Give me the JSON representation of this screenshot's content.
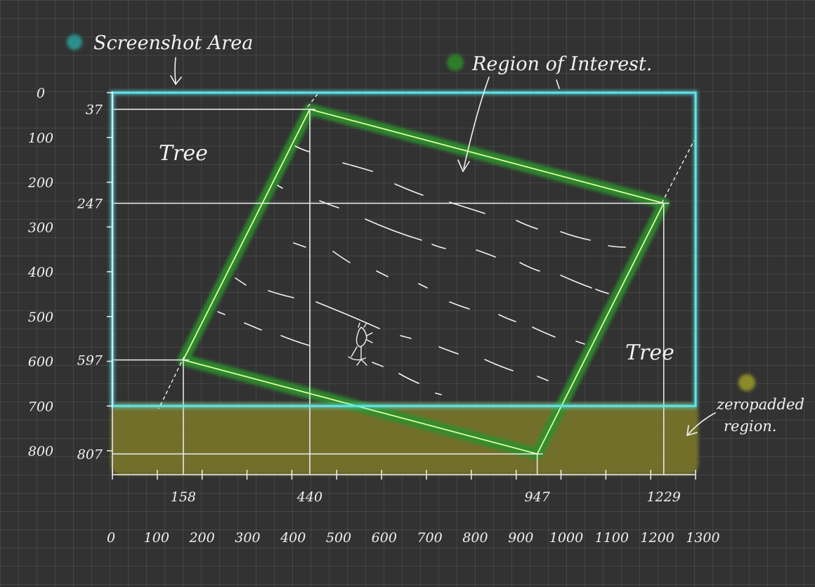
{
  "legend": {
    "screenshot_area": {
      "label": "Screenshot Area",
      "color": "#2b8f8c"
    },
    "region_of_interest": {
      "label": "Region of Interest.",
      "color": "#2e7d2a"
    },
    "zeropadded": {
      "label_line1": "zeropadded",
      "label_line2": "region.",
      "color": "#8a8a2a"
    }
  },
  "labels": {
    "tree_top_left": "Tree",
    "tree_right": "Tree"
  },
  "colors": {
    "screenshot_frame": "#5fe3e6",
    "roi_outline": "#d8ff9a",
    "roi_glow": "#2f8f2f",
    "padding_fill": "#77742a",
    "guide_lines": "#f0f0f0"
  },
  "chart_data": {
    "type": "diagram",
    "units": "pixels",
    "screenshot_area": {
      "x0": 0,
      "y0": 0,
      "x1": 1300,
      "y1": 700
    },
    "zeropadded_region": {
      "x0": 0,
      "y0": 700,
      "x1": 1300,
      "y1": 807
    },
    "region_of_interest": [
      {
        "x": 440,
        "y": 37
      },
      {
        "x": 1229,
        "y": 247
      },
      {
        "x": 947,
        "y": 807
      },
      {
        "x": 158,
        "y": 597
      }
    ],
    "x_ticks": [
      "0",
      "100",
      "200",
      "300",
      "400",
      "500",
      "600",
      "700",
      "800",
      "900",
      "1000",
      "1100",
      "1200",
      "1300"
    ],
    "y_ticks": [
      "0",
      "100",
      "200",
      "300",
      "400",
      "500",
      "600",
      "700",
      "800"
    ],
    "x_marks": [
      {
        "label": "158",
        "value": 158
      },
      {
        "label": "440",
        "value": 440
      },
      {
        "label": "947",
        "value": 947
      },
      {
        "label": "1229",
        "value": 1229
      }
    ],
    "y_marks": [
      {
        "label": "37",
        "value": 37
      },
      {
        "label": "247",
        "value": 247
      },
      {
        "label": "597",
        "value": 597
      },
      {
        "label": "807",
        "value": 807
      }
    ]
  }
}
